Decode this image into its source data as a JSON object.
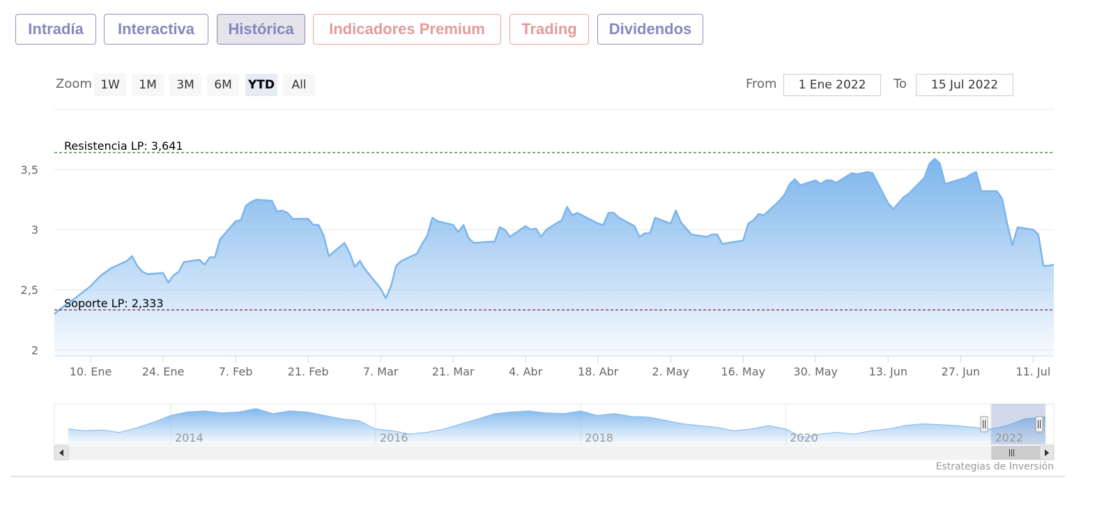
{
  "tabs": [
    {
      "label": "Intradía"
    },
    {
      "label": "Interactiva"
    },
    {
      "label": "Histórica"
    },
    {
      "label": "Indicadores Premium"
    },
    {
      "label": "Trading"
    },
    {
      "label": "Dividendos"
    }
  ],
  "range_selector": {
    "zoom_label": "Zoom",
    "buttons": [
      "1W",
      "1M",
      "3M",
      "6M",
      "YTD",
      "All"
    ],
    "selected": "YTD",
    "from_label": "From",
    "from_value": "1 Ene 2022",
    "to_label": "To",
    "to_value": "15 Jul 2022"
  },
  "chart_data": {
    "type": "area",
    "title": "",
    "xlabel": "",
    "ylabel": "",
    "date_range": [
      "2022-01-03",
      "2022-07-15"
    ],
    "ylim": [
      1.95,
      4.0
    ],
    "y_ticks": [
      {
        "value": 2,
        "label": "2"
      },
      {
        "value": 2.5,
        "label": "2,5"
      },
      {
        "value": 3,
        "label": "3"
      },
      {
        "value": 3.5,
        "label": "3,5"
      }
    ],
    "x_ticks": [
      {
        "date": "2022-01-10",
        "label": "10. Ene"
      },
      {
        "date": "2022-01-24",
        "label": "24. Ene"
      },
      {
        "date": "2022-02-07",
        "label": "7. Feb"
      },
      {
        "date": "2022-02-21",
        "label": "21. Feb"
      },
      {
        "date": "2022-03-07",
        "label": "7. Mar"
      },
      {
        "date": "2022-03-21",
        "label": "21. Mar"
      },
      {
        "date": "2022-04-04",
        "label": "4. Abr"
      },
      {
        "date": "2022-04-18",
        "label": "18. Abr"
      },
      {
        "date": "2022-05-02",
        "label": "2. May"
      },
      {
        "date": "2022-05-16",
        "label": "16. May"
      },
      {
        "date": "2022-05-30",
        "label": "30. May"
      },
      {
        "date": "2022-06-13",
        "label": "13. Jun"
      },
      {
        "date": "2022-06-27",
        "label": "27. Jun"
      },
      {
        "date": "2022-07-11",
        "label": "11. Jul"
      }
    ],
    "grid": true,
    "plot_lines": [
      {
        "label": "Resistencia LP: 3,641",
        "value": 3.641,
        "color": "#2f7d2f"
      },
      {
        "label": "Soporte LP: 2,333",
        "value": 2.333,
        "color": "#7a1f3d"
      }
    ],
    "series": [
      {
        "color": "#7cb5ec",
        "points": [
          [
            "2022-01-03",
            2.3
          ],
          [
            "2022-01-05",
            2.37
          ],
          [
            "2022-01-07",
            2.43
          ],
          [
            "2022-01-10",
            2.53
          ],
          [
            "2022-01-12",
            2.62
          ],
          [
            "2022-01-14",
            2.68
          ],
          [
            "2022-01-17",
            2.74
          ],
          [
            "2022-01-18",
            2.78
          ],
          [
            "2022-01-19",
            2.7
          ],
          [
            "2022-01-20",
            2.65
          ],
          [
            "2022-01-21",
            2.63
          ],
          [
            "2022-01-24",
            2.64
          ],
          [
            "2022-01-25",
            2.56
          ],
          [
            "2022-01-26",
            2.62
          ],
          [
            "2022-01-27",
            2.65
          ],
          [
            "2022-01-28",
            2.73
          ],
          [
            "2022-01-31",
            2.75
          ],
          [
            "2022-02-01",
            2.71
          ],
          [
            "2022-02-02",
            2.77
          ],
          [
            "2022-02-03",
            2.77
          ],
          [
            "2022-02-04",
            2.92
          ],
          [
            "2022-02-07",
            3.07
          ],
          [
            "2022-02-08",
            3.08
          ],
          [
            "2022-02-09",
            3.2
          ],
          [
            "2022-02-10",
            3.23
          ],
          [
            "2022-02-11",
            3.25
          ],
          [
            "2022-02-14",
            3.24
          ],
          [
            "2022-02-15",
            3.15
          ],
          [
            "2022-02-16",
            3.16
          ],
          [
            "2022-02-17",
            3.14
          ],
          [
            "2022-02-18",
            3.09
          ],
          [
            "2022-02-21",
            3.09
          ],
          [
            "2022-02-22",
            3.04
          ],
          [
            "2022-02-23",
            3.04
          ],
          [
            "2022-02-24",
            2.95
          ],
          [
            "2022-02-25",
            2.78
          ],
          [
            "2022-02-28",
            2.89
          ],
          [
            "2022-03-01",
            2.81
          ],
          [
            "2022-03-02",
            2.69
          ],
          [
            "2022-03-03",
            2.74
          ],
          [
            "2022-03-04",
            2.67
          ],
          [
            "2022-03-07",
            2.51
          ],
          [
            "2022-03-08",
            2.43
          ],
          [
            "2022-03-09",
            2.53
          ],
          [
            "2022-03-10",
            2.7
          ],
          [
            "2022-03-11",
            2.74
          ],
          [
            "2022-03-14",
            2.8
          ],
          [
            "2022-03-15",
            2.88
          ],
          [
            "2022-03-16",
            2.95
          ],
          [
            "2022-03-17",
            3.1
          ],
          [
            "2022-03-18",
            3.07
          ],
          [
            "2022-03-21",
            3.04
          ],
          [
            "2022-03-22",
            2.98
          ],
          [
            "2022-03-23",
            3.04
          ],
          [
            "2022-03-24",
            2.93
          ],
          [
            "2022-03-25",
            2.89
          ],
          [
            "2022-03-28",
            2.9
          ],
          [
            "2022-03-29",
            2.9
          ],
          [
            "2022-03-30",
            3.02
          ],
          [
            "2022-03-31",
            3.0
          ],
          [
            "2022-04-01",
            2.94
          ],
          [
            "2022-04-04",
            3.03
          ],
          [
            "2022-04-05",
            3.0
          ],
          [
            "2022-04-06",
            3.01
          ],
          [
            "2022-04-07",
            2.94
          ],
          [
            "2022-04-08",
            3.0
          ],
          [
            "2022-04-11",
            3.08
          ],
          [
            "2022-04-12",
            3.19
          ],
          [
            "2022-04-13",
            3.12
          ],
          [
            "2022-04-14",
            3.14
          ],
          [
            "2022-04-18",
            3.05
          ],
          [
            "2022-04-19",
            3.04
          ],
          [
            "2022-04-20",
            3.14
          ],
          [
            "2022-04-21",
            3.14
          ],
          [
            "2022-04-22",
            3.1
          ],
          [
            "2022-04-25",
            3.03
          ],
          [
            "2022-04-26",
            2.94
          ],
          [
            "2022-04-27",
            2.97
          ],
          [
            "2022-04-28",
            2.97
          ],
          [
            "2022-04-29",
            3.1
          ],
          [
            "2022-05-02",
            3.05
          ],
          [
            "2022-05-03",
            3.16
          ],
          [
            "2022-05-04",
            3.06
          ],
          [
            "2022-05-05",
            3.01
          ],
          [
            "2022-05-06",
            2.96
          ],
          [
            "2022-05-09",
            2.94
          ],
          [
            "2022-05-10",
            2.96
          ],
          [
            "2022-05-11",
            2.96
          ],
          [
            "2022-05-12",
            2.88
          ],
          [
            "2022-05-13",
            2.89
          ],
          [
            "2022-05-16",
            2.91
          ],
          [
            "2022-05-17",
            3.05
          ],
          [
            "2022-05-18",
            3.08
          ],
          [
            "2022-05-19",
            3.13
          ],
          [
            "2022-05-20",
            3.12
          ],
          [
            "2022-05-23",
            3.24
          ],
          [
            "2022-05-24",
            3.29
          ],
          [
            "2022-05-25",
            3.38
          ],
          [
            "2022-05-26",
            3.42
          ],
          [
            "2022-05-27",
            3.37
          ],
          [
            "2022-05-30",
            3.41
          ],
          [
            "2022-05-31",
            3.38
          ],
          [
            "2022-06-01",
            3.41
          ],
          [
            "2022-06-02",
            3.41
          ],
          [
            "2022-06-03",
            3.39
          ],
          [
            "2022-06-06",
            3.47
          ],
          [
            "2022-06-07",
            3.46
          ],
          [
            "2022-06-08",
            3.47
          ],
          [
            "2022-06-09",
            3.48
          ],
          [
            "2022-06-10",
            3.47
          ],
          [
            "2022-06-13",
            3.22
          ],
          [
            "2022-06-14",
            3.17
          ],
          [
            "2022-06-15",
            3.22
          ],
          [
            "2022-06-16",
            3.27
          ],
          [
            "2022-06-17",
            3.3
          ],
          [
            "2022-06-20",
            3.43
          ],
          [
            "2022-06-21",
            3.55
          ],
          [
            "2022-06-22",
            3.59
          ],
          [
            "2022-06-23",
            3.55
          ],
          [
            "2022-06-24",
            3.38
          ],
          [
            "2022-06-27",
            3.42
          ],
          [
            "2022-06-28",
            3.43
          ],
          [
            "2022-06-29",
            3.46
          ],
          [
            "2022-06-30",
            3.48
          ],
          [
            "2022-07-01",
            3.32
          ],
          [
            "2022-07-04",
            3.32
          ],
          [
            "2022-07-05",
            3.26
          ],
          [
            "2022-07-06",
            3.05
          ],
          [
            "2022-07-07",
            2.87
          ],
          [
            "2022-07-08",
            3.02
          ],
          [
            "2022-07-11",
            3.0
          ],
          [
            "2022-07-12",
            2.96
          ],
          [
            "2022-07-13",
            2.7
          ],
          [
            "2022-07-14",
            2.7
          ],
          [
            "2022-07-15",
            2.71
          ]
        ]
      }
    ],
    "navigator": {
      "year_labels": [
        "2014",
        "2016",
        "2018",
        "2020",
        "2022"
      ],
      "series_color": "#7cb5ec",
      "window_start": "2022-01-03",
      "window_end": "2022-07-15",
      "points": [
        [
          "2013-01-01",
          2.35
        ],
        [
          "2013-03-01",
          2.3
        ],
        [
          "2013-05-01",
          2.32
        ],
        [
          "2013-07-01",
          2.25
        ],
        [
          "2013-09-01",
          2.38
        ],
        [
          "2013-11-01",
          2.55
        ],
        [
          "2014-01-01",
          2.75
        ],
        [
          "2014-03-01",
          2.85
        ],
        [
          "2014-05-01",
          2.88
        ],
        [
          "2014-07-01",
          2.82
        ],
        [
          "2014-09-01",
          2.85
        ],
        [
          "2014-11-01",
          2.95
        ],
        [
          "2015-01-01",
          2.8
        ],
        [
          "2015-03-01",
          2.88
        ],
        [
          "2015-05-01",
          2.85
        ],
        [
          "2015-07-01",
          2.75
        ],
        [
          "2015-09-01",
          2.65
        ],
        [
          "2015-11-01",
          2.6
        ],
        [
          "2016-01-01",
          2.35
        ],
        [
          "2016-03-01",
          2.3
        ],
        [
          "2016-05-01",
          2.2
        ],
        [
          "2016-07-01",
          2.25
        ],
        [
          "2016-09-01",
          2.35
        ],
        [
          "2016-11-01",
          2.5
        ],
        [
          "2017-01-01",
          2.65
        ],
        [
          "2017-03-01",
          2.8
        ],
        [
          "2017-05-01",
          2.85
        ],
        [
          "2017-07-01",
          2.88
        ],
        [
          "2017-09-01",
          2.82
        ],
        [
          "2017-11-01",
          2.8
        ],
        [
          "2018-01-01",
          2.88
        ],
        [
          "2018-03-01",
          2.75
        ],
        [
          "2018-05-01",
          2.8
        ],
        [
          "2018-07-01",
          2.72
        ],
        [
          "2018-09-01",
          2.7
        ],
        [
          "2018-11-01",
          2.6
        ],
        [
          "2019-01-01",
          2.5
        ],
        [
          "2019-03-01",
          2.45
        ],
        [
          "2019-05-01",
          2.4
        ],
        [
          "2019-07-01",
          2.3
        ],
        [
          "2019-09-01",
          2.35
        ],
        [
          "2019-11-01",
          2.45
        ],
        [
          "2020-01-01",
          2.35
        ],
        [
          "2020-03-01",
          2.1
        ],
        [
          "2020-05-01",
          2.2
        ],
        [
          "2020-07-01",
          2.25
        ],
        [
          "2020-09-01",
          2.2
        ],
        [
          "2020-11-01",
          2.3
        ],
        [
          "2021-01-01",
          2.35
        ],
        [
          "2021-03-01",
          2.45
        ],
        [
          "2021-05-01",
          2.5
        ],
        [
          "2021-07-01",
          2.48
        ],
        [
          "2021-09-01",
          2.45
        ],
        [
          "2021-11-01",
          2.4
        ],
        [
          "2022-01-01",
          2.35
        ],
        [
          "2022-03-01",
          2.45
        ],
        [
          "2022-05-01",
          2.65
        ],
        [
          "2022-07-15",
          2.7
        ]
      ]
    }
  },
  "credits": "Estrategias de Inversión"
}
